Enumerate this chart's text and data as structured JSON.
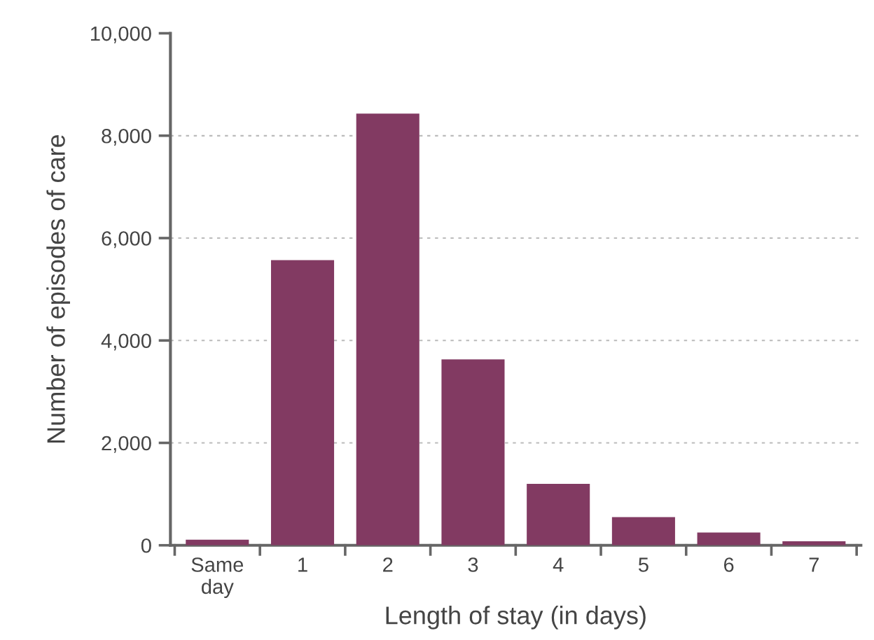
{
  "chart_data": {
    "type": "bar",
    "xlabel": "Length of stay (in days)",
    "ylabel": "Number of episodes of care",
    "categories": [
      "Same\nday",
      "1",
      "2",
      "3",
      "4",
      "5",
      "6",
      "7"
    ],
    "values": [
      110,
      5570,
      8430,
      3630,
      1200,
      550,
      250,
      80
    ],
    "color": "#823a62",
    "ylim": [
      0,
      10000
    ],
    "yticks": [
      {
        "value": 0,
        "label": "0"
      },
      {
        "value": 2000,
        "label": "2,000"
      },
      {
        "value": 4000,
        "label": "4,000"
      },
      {
        "value": 6000,
        "label": "6,000"
      },
      {
        "value": 8000,
        "label": "8,000"
      },
      {
        "value": 10000,
        "label": "10,000"
      }
    ],
    "grid": "y"
  }
}
